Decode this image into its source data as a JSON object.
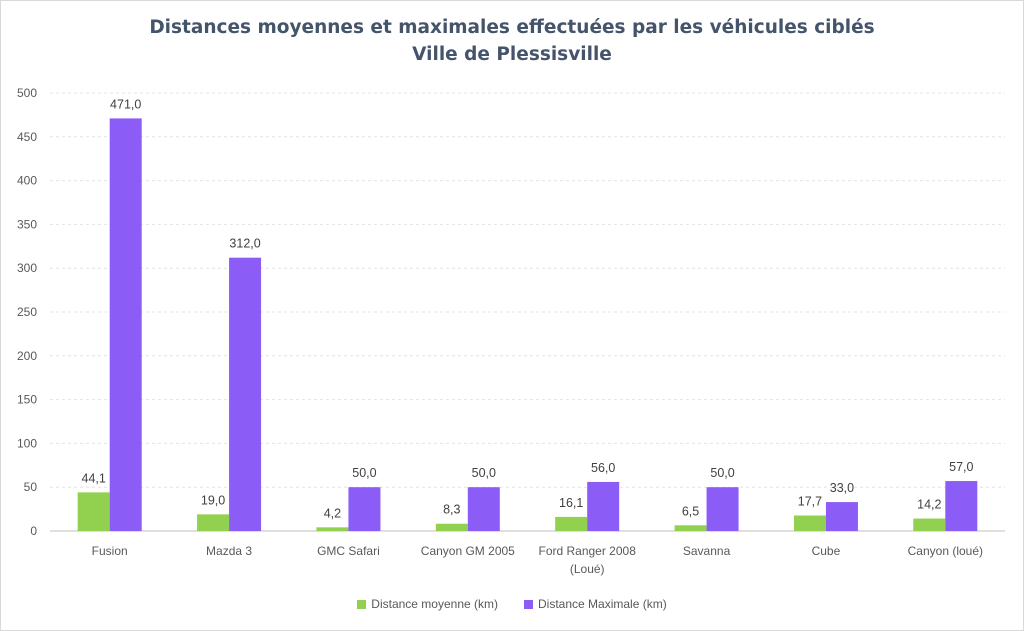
{
  "chart_data": {
    "type": "bar",
    "title": "Distances moyennes et maximales effectuées par les véhicules ciblés",
    "subtitle": "Ville de Plessisville",
    "categories": [
      [
        "Fusion"
      ],
      [
        "Mazda 3"
      ],
      [
        "GMC Safari"
      ],
      [
        "Canyon GM 2005"
      ],
      [
        "Ford Ranger 2008",
        "(Loué)"
      ],
      [
        "Savanna"
      ],
      [
        "Cube"
      ],
      [
        "Canyon (loué)"
      ]
    ],
    "series": [
      {
        "name": "Distance moyenne (km)",
        "color": "#92d050",
        "values": [
          44.1,
          19.0,
          4.2,
          8.3,
          16.1,
          6.5,
          17.7,
          14.2
        ],
        "labels": [
          "44,1",
          "19,0",
          "4,2",
          "8,3",
          "16,1",
          "6,5",
          "17,7",
          "14,2"
        ]
      },
      {
        "name": "Distance Maximale (km)",
        "color": "#8b5cf6",
        "values": [
          471.0,
          312.0,
          50.0,
          50.0,
          56.0,
          50.0,
          33.0,
          57.0
        ],
        "labels": [
          "471,0",
          "312,0",
          "50,0",
          "50,0",
          "56,0",
          "50,0",
          "33,0",
          "57,0"
        ]
      }
    ],
    "ylim": [
      0,
      500
    ],
    "yticks": [
      0,
      50,
      100,
      150,
      200,
      250,
      300,
      350,
      400,
      450,
      500
    ],
    "grid": true,
    "legend_position": "bottom"
  }
}
